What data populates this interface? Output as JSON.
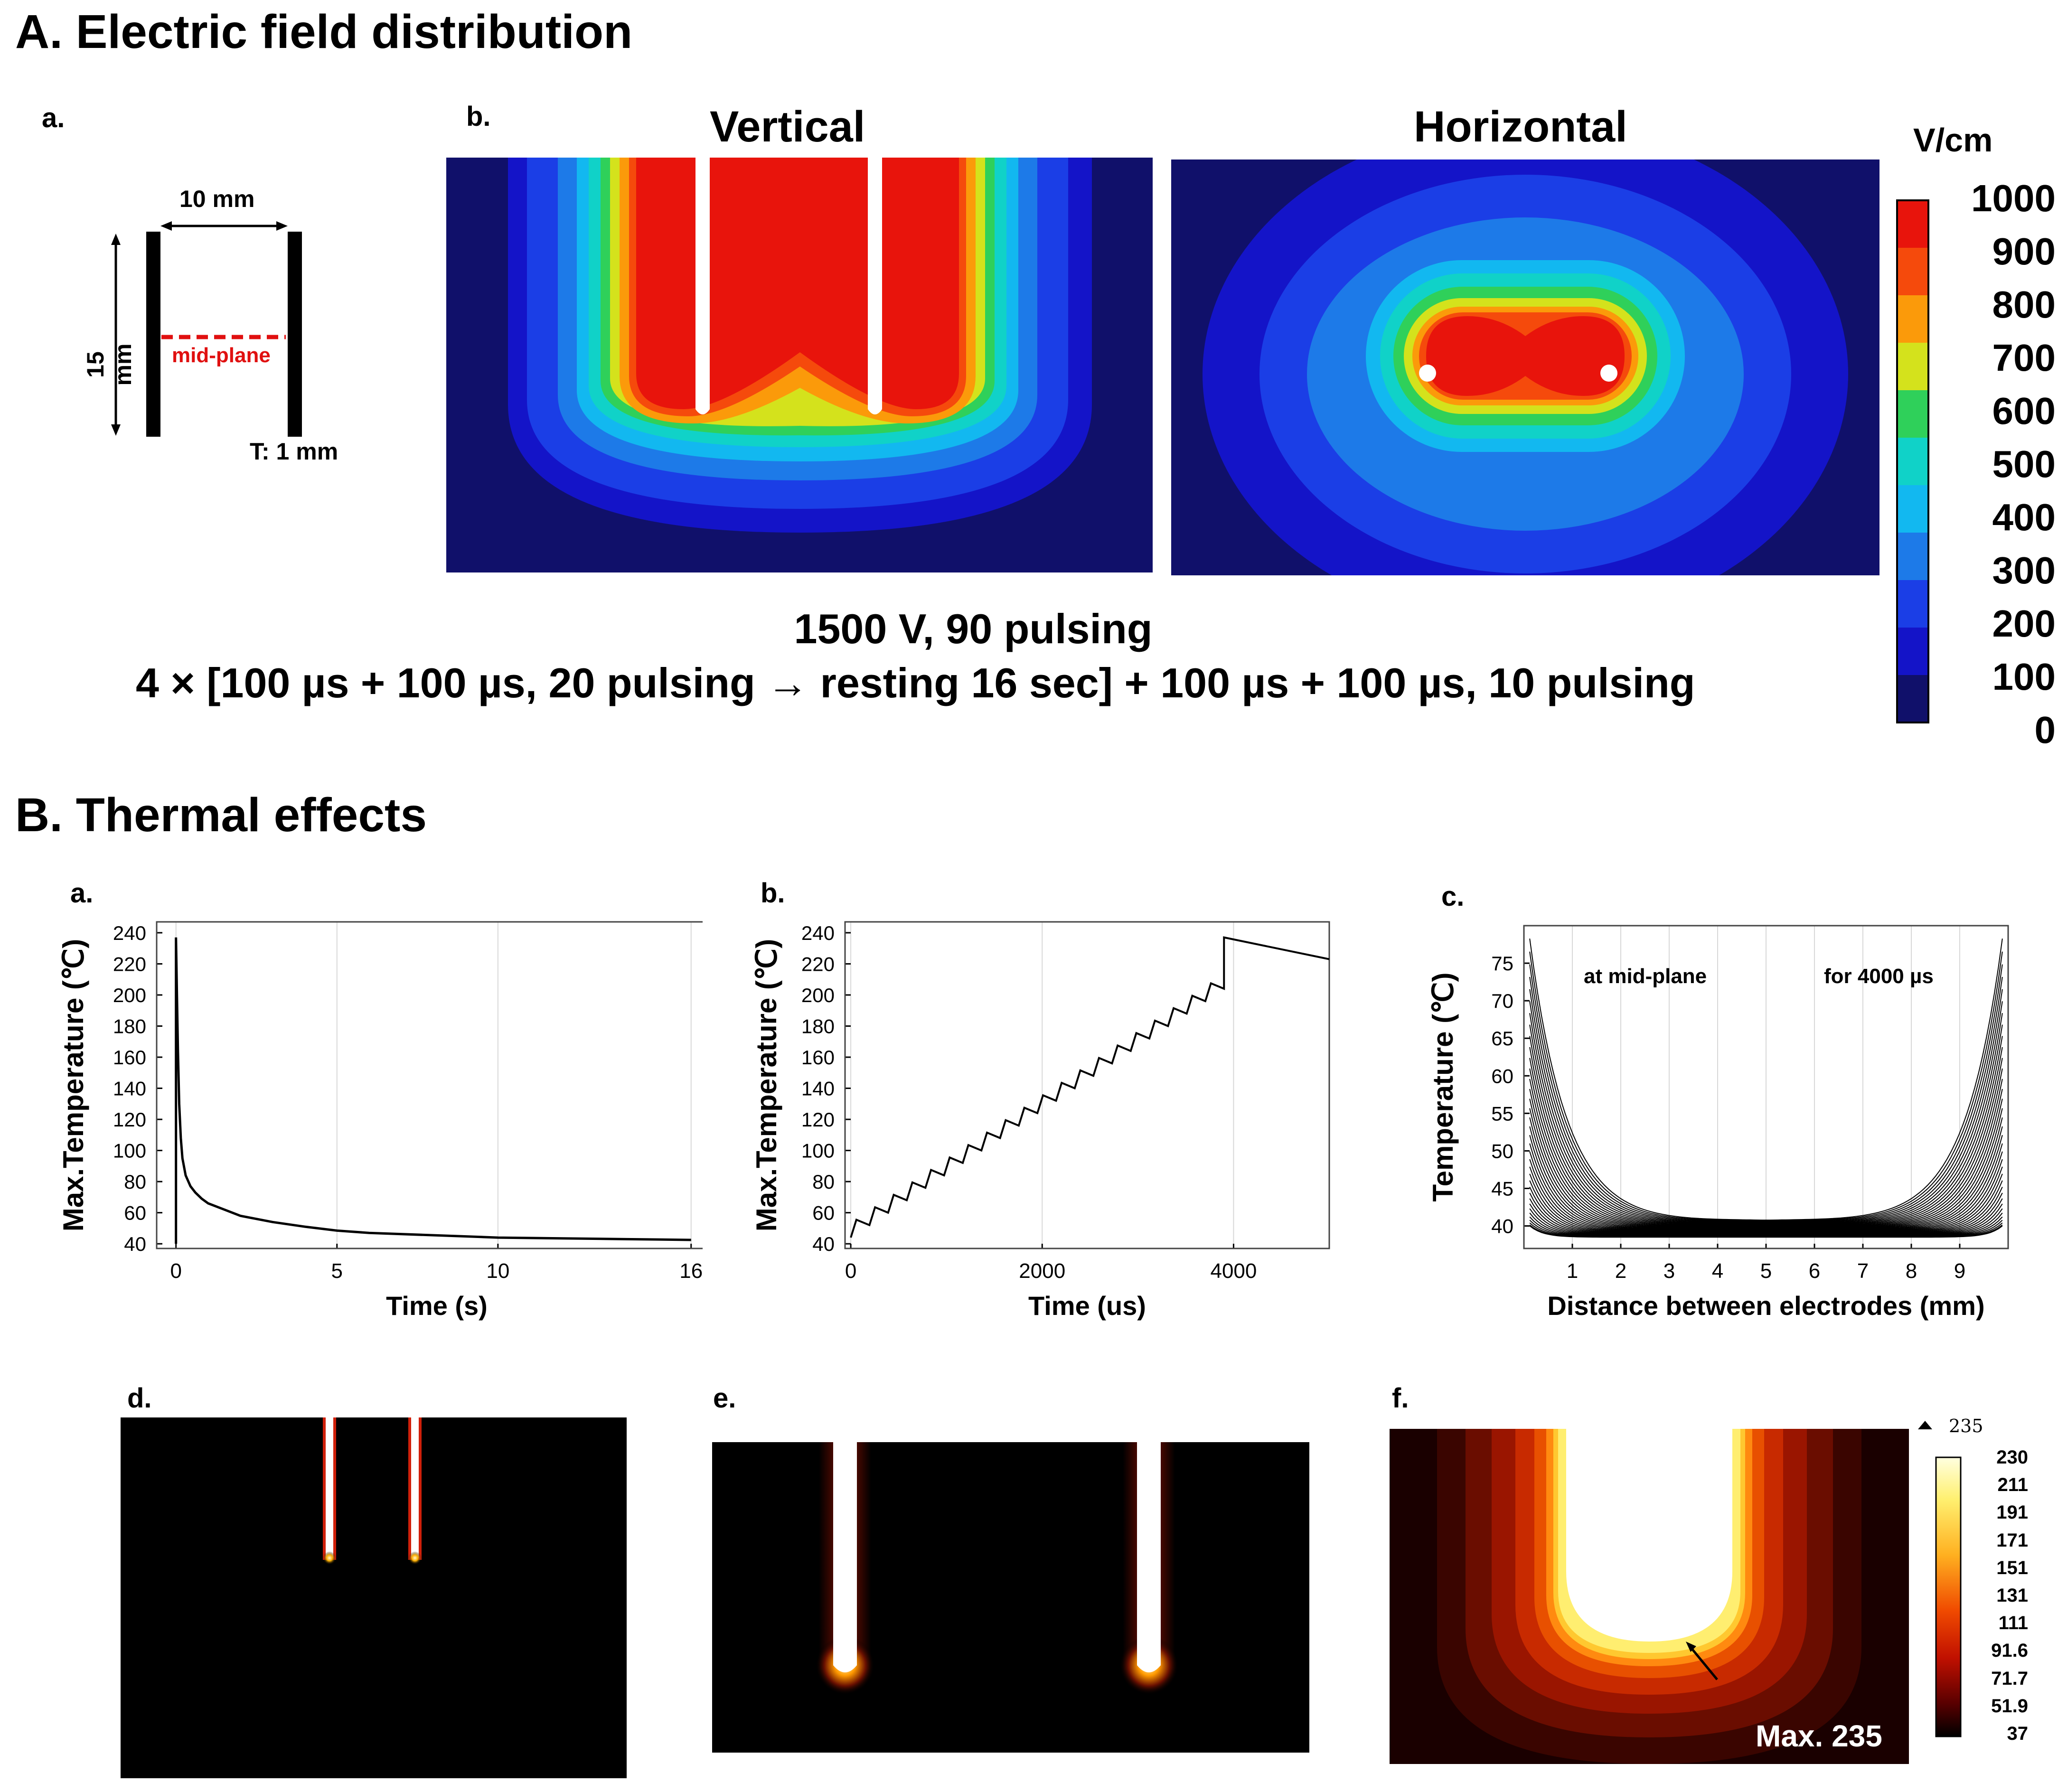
{
  "section_a": {
    "title": "A. Electric field distribution",
    "panel_a": {
      "letter": "a.",
      "gap_label": "10 mm",
      "height_label": "15 mm",
      "midplane_label": "mid-plane",
      "thickness_label": "T: 1 mm"
    },
    "panel_b": {
      "letter": "b.",
      "vertical_title": "Vertical",
      "horizontal_title": "Horizontal"
    },
    "colorbar": {
      "unit": "V/cm",
      "ticks": [
        "1000",
        "900",
        "800",
        "700",
        "600",
        "500",
        "400",
        "300",
        "200",
        "100",
        "0"
      ],
      "colors": [
        "#e8140c",
        "#f54a0c",
        "#fb9a0a",
        "#d4e21c",
        "#2fd05a",
        "#10d2c8",
        "#12b8f0",
        "#1d7ae8",
        "#1b3ee6",
        "#1414c8",
        "#10106a"
      ]
    },
    "caption_line1": "1500 V, 90 pulsing",
    "caption_line2": "4 × [100 µs + 100 µs, 20 pulsing → resting 16 sec] + 100 µs + 100 µs, 10 pulsing"
  },
  "section_b": {
    "title": "B. Thermal effects",
    "letters": {
      "a": "a.",
      "b": "b.",
      "c": "c.",
      "d": "d.",
      "e": "e.",
      "f": "f."
    },
    "panel_c_annotations": {
      "left": "at mid-plane",
      "right": "for 4000 µs"
    },
    "panel_f": {
      "max_label": "Max. 235",
      "top_marker": "235",
      "colorbar_ticks": [
        "230",
        "211",
        "191",
        "171",
        "151",
        "131",
        "111",
        "91.6",
        "71.7",
        "51.9",
        "37"
      ]
    }
  },
  "chart_data": [
    {
      "type": "line",
      "xlabel": "Time (s)",
      "ylabel": "Max.Temperature (℃)",
      "xticks": [
        "0",
        "5",
        "10",
        "16"
      ],
      "yticks": [
        "40",
        "60",
        "80",
        "100",
        "120",
        "140",
        "160",
        "180",
        "200",
        "220",
        "240"
      ],
      "xlim": [
        -0.6,
        16.8
      ],
      "ylim": [
        37,
        247
      ],
      "series": [
        {
          "x": [
            0,
            0.03,
            0.06,
            0.1,
            0.15,
            0.2,
            0.3,
            0.45,
            0.6,
            0.8,
            1,
            1.5,
            2,
            3,
            4,
            5,
            6,
            8,
            10,
            12,
            14,
            16
          ],
          "y": [
            237,
            200,
            165,
            130,
            108,
            95,
            84,
            77,
            73,
            69,
            66,
            62,
            58,
            54,
            51,
            48.5,
            47,
            45.5,
            44,
            43.5,
            43,
            42.5
          ]
        }
      ]
    },
    {
      "type": "line",
      "xlabel": "Time (us)",
      "ylabel": "Max.Temperature (℃)",
      "xticks": [
        "0",
        "2000",
        "4000"
      ],
      "yticks": [
        "40",
        "60",
        "80",
        "100",
        "120",
        "140",
        "160",
        "180",
        "200",
        "220",
        "240"
      ],
      "xlim": [
        -60,
        5000
      ],
      "ylim": [
        37,
        247
      ],
      "steps": {
        "start_y": 44,
        "rise": 11.5,
        "droop": 3.5,
        "count": 20,
        "period": 195
      },
      "series": [
        {
          "x": [
            3900,
            5000
          ],
          "y": [
            237,
            223
          ]
        }
      ]
    },
    {
      "type": "line",
      "xlabel": "Distance between electrodes (mm)",
      "ylabel": "Temperature (℃)",
      "xticks": [
        "1",
        "2",
        "3",
        "4",
        "5",
        "6",
        "7",
        "8",
        "9"
      ],
      "yticks": [
        "40",
        "45",
        "50",
        "55",
        "60",
        "65",
        "70",
        "75"
      ],
      "xlim": [
        0,
        10
      ],
      "ylim": [
        37,
        80
      ],
      "curve_family": {
        "count": 36,
        "base": 38.5,
        "min_edge": 40,
        "max_edge": 78,
        "center": 39.5
      }
    }
  ]
}
